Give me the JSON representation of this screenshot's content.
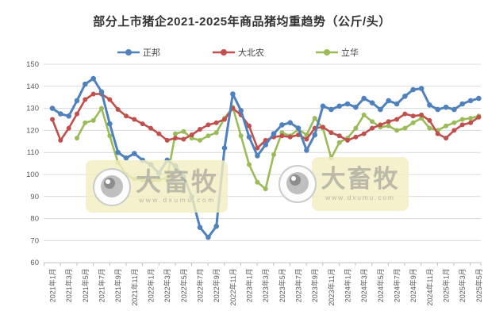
{
  "title": "部分上市猪企2021-2025年商品猪均重趋势（公斤/头）",
  "watermark": {
    "brand": "大畜牧",
    "url": "www.dxumu.com"
  },
  "chart_data": {
    "type": "line",
    "title": "部分上市猪企2021-2025年商品猪均重趋势（公斤/头）",
    "xlabel": "",
    "ylabel": "",
    "unit": "公斤/头",
    "ylim": [
      60,
      150
    ],
    "yticks": [
      60,
      70,
      80,
      90,
      100,
      110,
      120,
      130,
      140,
      150
    ],
    "grid": "horizontal",
    "legend_position": "top",
    "x_tick_labels": [
      "2021年1月",
      "2021年3月",
      "2021年5月",
      "2021年7月",
      "2021年9月",
      "2021年11月",
      "2022年1月",
      "2022年3月",
      "2022年5月",
      "2022年7月",
      "2022年9月",
      "2022年11月",
      "2023年1月",
      "2023年3月",
      "2023年5月",
      "2023年7月",
      "2023年9月",
      "2023年11月",
      "2024年1月",
      "2024年3月",
      "2024年5月",
      "2024年7月",
      "2024年9月",
      "2024年11月",
      "2025年1月",
      "2025年3月",
      "2025年5月"
    ],
    "months": [
      "2021年1月",
      "2021年2月",
      "2021年3月",
      "2021年4月",
      "2021年5月",
      "2021年6月",
      "2021年7月",
      "2021年8月",
      "2021年9月",
      "2021年10月",
      "2021年11月",
      "2021年12月",
      "2022年1月",
      "2022年2月",
      "2022年3月",
      "2022年4月",
      "2022年5月",
      "2022年6月",
      "2022年7月",
      "2022年8月",
      "2022年9月",
      "2022年10月",
      "2022年11月",
      "2022年12月",
      "2023年1月",
      "2023年2月",
      "2023年3月",
      "2023年4月",
      "2023年5月",
      "2023年6月",
      "2023年7月",
      "2023年8月",
      "2023年9月",
      "2023年10月",
      "2023年11月",
      "2023年12月",
      "2024年1月",
      "2024年2月",
      "2024年3月",
      "2024年4月",
      "2024年5月",
      "2024年6月",
      "2024年7月",
      "2024年8月",
      "2024年9月",
      "2024年10月",
      "2024年11月",
      "2024年12月",
      "2025年1月",
      "2025年2月",
      "2025年3月",
      "2025年4月",
      "2025年5月"
    ],
    "series": [
      {
        "name": "正邦",
        "color": "#4F81BD",
        "values": [
          130,
          127.5,
          126.5,
          133.5,
          141,
          143.5,
          137.5,
          123,
          110,
          107.5,
          109.5,
          106.5,
          104.5,
          100.5,
          106.5,
          104,
          99,
          90,
          76,
          71.5,
          76.5,
          112,
          136.5,
          129,
          117,
          108.5,
          113.5,
          118.5,
          122.5,
          123.5,
          121,
          111,
          118,
          131,
          129.5,
          131,
          132,
          130.5,
          134.5,
          132.5,
          129.5,
          133.5,
          132,
          135.5,
          138.5,
          139,
          131.5,
          129.5,
          130.5,
          129.5,
          132,
          133.5,
          134.5
        ]
      },
      {
        "name": "大北农",
        "color": "#C0504D",
        "values": [
          125,
          115.5,
          121,
          127.5,
          134,
          136.5,
          136.5,
          134,
          129.5,
          126.5,
          125,
          123,
          121,
          118.5,
          115.5,
          116.5,
          116,
          118,
          120.5,
          122.5,
          123.5,
          125,
          130,
          127,
          122,
          112,
          115.5,
          117,
          117.5,
          117,
          118,
          116,
          121,
          121.5,
          119,
          117.5,
          115.5,
          117,
          118.5,
          121,
          122.5,
          124,
          125,
          127.5,
          126.5,
          127,
          124.5,
          118.5,
          116.5,
          120,
          122.5,
          123.5,
          126
        ]
      },
      {
        "name": "立华",
        "color": "#9BBB59",
        "values": [
          null,
          null,
          null,
          116.5,
          123.5,
          124.5,
          130,
          117.5,
          105.5,
          100,
          98,
          97.5,
          97,
          97.5,
          98.5,
          118.5,
          119.5,
          116.5,
          115.5,
          117.5,
          119,
          125.5,
          130.5,
          117.5,
          104.5,
          96.5,
          93.5,
          109,
          119,
          117.5,
          120.5,
          118,
          125.5,
          121,
          107.5,
          114.5,
          116.5,
          121,
          127,
          124,
          121.5,
          122,
          120,
          121,
          123.5,
          125.5,
          121,
          120,
          122,
          123.5,
          125,
          125.5,
          126.5
        ]
      }
    ]
  }
}
